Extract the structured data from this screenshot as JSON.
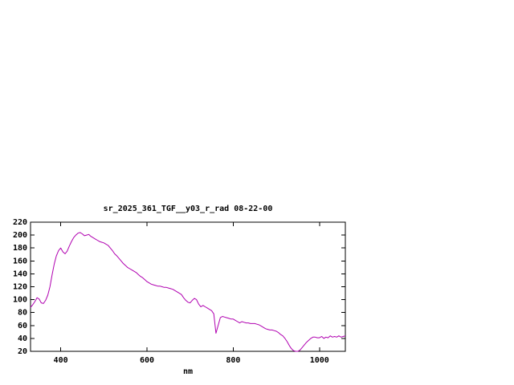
{
  "chart_data": {
    "type": "line",
    "title": "sr_2025_361_TGF__y03_r_rad 08-22-00",
    "xlabel": "nm",
    "ylabel": "",
    "xlim": [
      330,
      1060
    ],
    "ylim": [
      20,
      220
    ],
    "xticks": [
      400,
      600,
      800,
      1000
    ],
    "yticks": [
      20,
      40,
      60,
      80,
      100,
      120,
      140,
      160,
      180,
      200,
      220
    ],
    "grid": false,
    "legend_position": "none",
    "line_color": "#b000b0",
    "background_color": "#ffffff",
    "border_color": "#000000",
    "series": [
      {
        "name": "sr_2025_361_TGF__y03_r_rad",
        "points": [
          [
            330,
            88
          ],
          [
            335,
            92
          ],
          [
            340,
            97
          ],
          [
            345,
            103
          ],
          [
            350,
            101
          ],
          [
            355,
            95
          ],
          [
            360,
            94
          ],
          [
            365,
            99
          ],
          [
            370,
            107
          ],
          [
            375,
            120
          ],
          [
            380,
            138
          ],
          [
            385,
            155
          ],
          [
            390,
            168
          ],
          [
            395,
            176
          ],
          [
            400,
            180
          ],
          [
            405,
            174
          ],
          [
            410,
            171
          ],
          [
            415,
            175
          ],
          [
            420,
            183
          ],
          [
            425,
            190
          ],
          [
            430,
            196
          ],
          [
            435,
            200
          ],
          [
            440,
            203
          ],
          [
            445,
            204
          ],
          [
            450,
            202
          ],
          [
            455,
            199
          ],
          [
            460,
            200
          ],
          [
            465,
            201
          ],
          [
            470,
            198
          ],
          [
            475,
            196
          ],
          [
            480,
            194
          ],
          [
            485,
            192
          ],
          [
            490,
            190
          ],
          [
            495,
            189
          ],
          [
            500,
            188
          ],
          [
            505,
            186
          ],
          [
            510,
            184
          ],
          [
            515,
            180
          ],
          [
            520,
            176
          ],
          [
            525,
            171
          ],
          [
            530,
            168
          ],
          [
            535,
            164
          ],
          [
            540,
            160
          ],
          [
            545,
            156
          ],
          [
            550,
            153
          ],
          [
            555,
            150
          ],
          [
            560,
            148
          ],
          [
            565,
            146
          ],
          [
            570,
            144
          ],
          [
            575,
            142
          ],
          [
            580,
            139
          ],
          [
            585,
            136
          ],
          [
            590,
            134
          ],
          [
            595,
            131
          ],
          [
            600,
            128
          ],
          [
            605,
            126
          ],
          [
            610,
            124
          ],
          [
            615,
            123
          ],
          [
            620,
            122
          ],
          [
            625,
            121
          ],
          [
            630,
            121
          ],
          [
            635,
            120
          ],
          [
            640,
            119
          ],
          [
            645,
            119
          ],
          [
            650,
            118
          ],
          [
            655,
            117
          ],
          [
            660,
            116
          ],
          [
            665,
            114
          ],
          [
            670,
            112
          ],
          [
            675,
            110
          ],
          [
            680,
            108
          ],
          [
            685,
            103
          ],
          [
            690,
            99
          ],
          [
            695,
            96
          ],
          [
            700,
            95
          ],
          [
            705,
            99
          ],
          [
            710,
            102
          ],
          [
            715,
            100
          ],
          [
            720,
            93
          ],
          [
            725,
            89
          ],
          [
            730,
            91
          ],
          [
            735,
            89
          ],
          [
            740,
            87
          ],
          [
            745,
            85
          ],
          [
            750,
            83
          ],
          [
            755,
            78
          ],
          [
            760,
            48
          ],
          [
            765,
            60
          ],
          [
            770,
            72
          ],
          [
            775,
            74
          ],
          [
            780,
            73
          ],
          [
            785,
            72
          ],
          [
            790,
            71
          ],
          [
            795,
            70
          ],
          [
            800,
            70
          ],
          [
            805,
            68
          ],
          [
            810,
            66
          ],
          [
            815,
            64
          ],
          [
            820,
            66
          ],
          [
            825,
            65
          ],
          [
            830,
            64
          ],
          [
            835,
            64
          ],
          [
            840,
            63
          ],
          [
            845,
            63
          ],
          [
            850,
            63
          ],
          [
            855,
            62
          ],
          [
            860,
            61
          ],
          [
            865,
            59
          ],
          [
            870,
            57
          ],
          [
            875,
            55
          ],
          [
            880,
            54
          ],
          [
            885,
            53
          ],
          [
            890,
            53
          ],
          [
            895,
            52
          ],
          [
            900,
            51
          ],
          [
            905,
            49
          ],
          [
            910,
            46
          ],
          [
            915,
            44
          ],
          [
            920,
            40
          ],
          [
            925,
            35
          ],
          [
            930,
            29
          ],
          [
            935,
            24
          ],
          [
            940,
            21
          ],
          [
            945,
            20
          ],
          [
            950,
            20
          ],
          [
            955,
            22
          ],
          [
            960,
            26
          ],
          [
            965,
            30
          ],
          [
            970,
            34
          ],
          [
            975,
            37
          ],
          [
            980,
            40
          ],
          [
            985,
            42
          ],
          [
            990,
            42
          ],
          [
            995,
            41
          ],
          [
            1000,
            41
          ],
          [
            1005,
            43
          ],
          [
            1010,
            40
          ],
          [
            1015,
            42
          ],
          [
            1020,
            41
          ],
          [
            1025,
            44
          ],
          [
            1030,
            42
          ],
          [
            1035,
            43
          ],
          [
            1040,
            42
          ],
          [
            1045,
            44
          ],
          [
            1050,
            42
          ],
          [
            1055,
            43
          ],
          [
            1060,
            44
          ]
        ]
      }
    ]
  }
}
